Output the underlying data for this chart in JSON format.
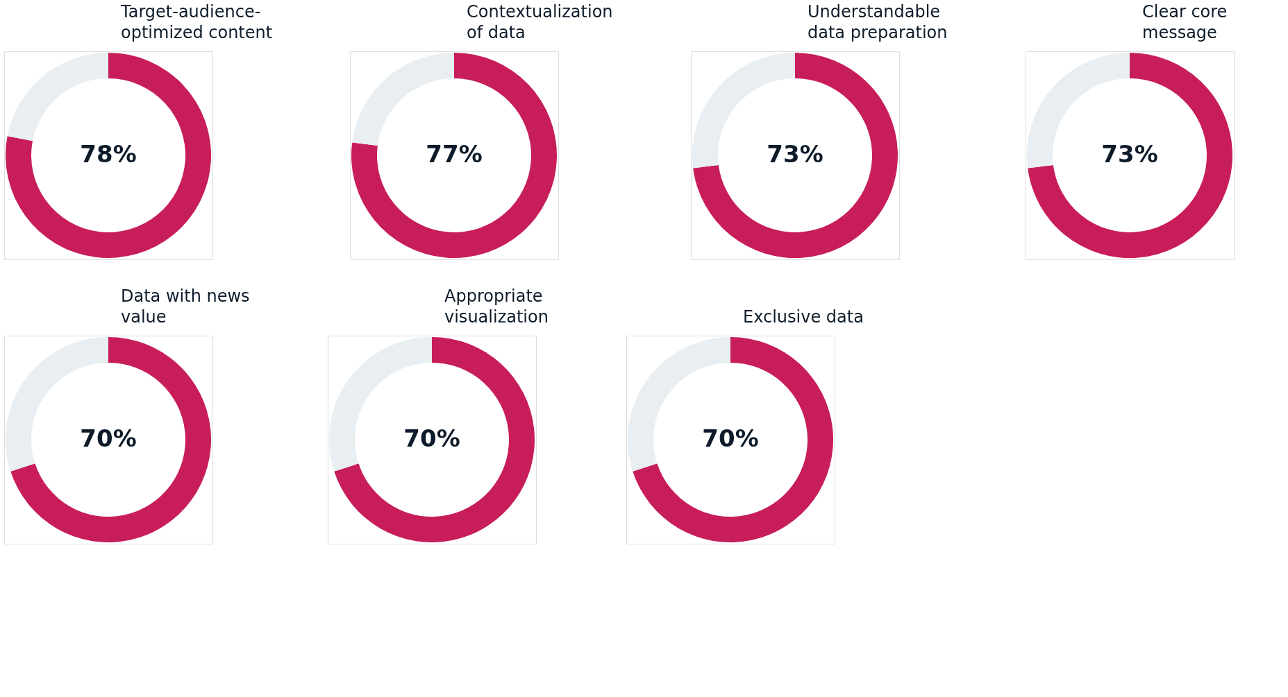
{
  "chart_data": [
    {
      "type": "donut",
      "title": "Target-audience-optimized content",
      "categories": [
        null,
        null
      ],
      "values": [
        78,
        22
      ],
      "colors": [
        "#c81d5b",
        "#e8eef1"
      ],
      "value_labels": [
        "78%",
        null
      ]
    },
    {
      "type": "donut",
      "title": "Contextualization of data",
      "categories": [
        null,
        null
      ],
      "values": [
        77,
        23
      ],
      "colors": [
        "#c81d5b",
        "#e8eef1"
      ],
      "value_labels": [
        "77%",
        null
      ]
    },
    {
      "type": "donut",
      "title": "Understandable data preparation",
      "categories": [
        null,
        null
      ],
      "values": [
        73,
        27
      ],
      "colors": [
        "#c81d5b",
        "#e8eef1"
      ],
      "value_labels": [
        "73%",
        null
      ]
    },
    {
      "type": "donut",
      "title": "Clear core message",
      "categories": [
        null,
        null
      ],
      "values": [
        73,
        27
      ],
      "colors": [
        "#c81d5b",
        "#e8eef1"
      ],
      "value_labels": [
        "73%",
        null
      ]
    },
    {
      "type": "donut",
      "title": "Data with news value",
      "categories": [
        null,
        null
      ],
      "values": [
        70,
        30
      ],
      "colors": [
        "#c81d5b",
        "#e8eef1"
      ],
      "value_labels": [
        "70%",
        null
      ]
    },
    {
      "type": "donut",
      "title": "Appropriate visualization",
      "categories": [
        null,
        null
      ],
      "values": [
        70,
        30
      ],
      "colors": [
        "#c81d5b",
        "#e8eef1"
      ],
      "value_labels": [
        "70%",
        null
      ]
    },
    {
      "type": "donut",
      "title": "Exclusive data",
      "categories": [
        null,
        null
      ],
      "values": [
        70,
        30
      ],
      "colors": [
        "#c81d5b",
        "#e8eef1"
      ],
      "value_labels": [
        "70%",
        null
      ]
    }
  ]
}
